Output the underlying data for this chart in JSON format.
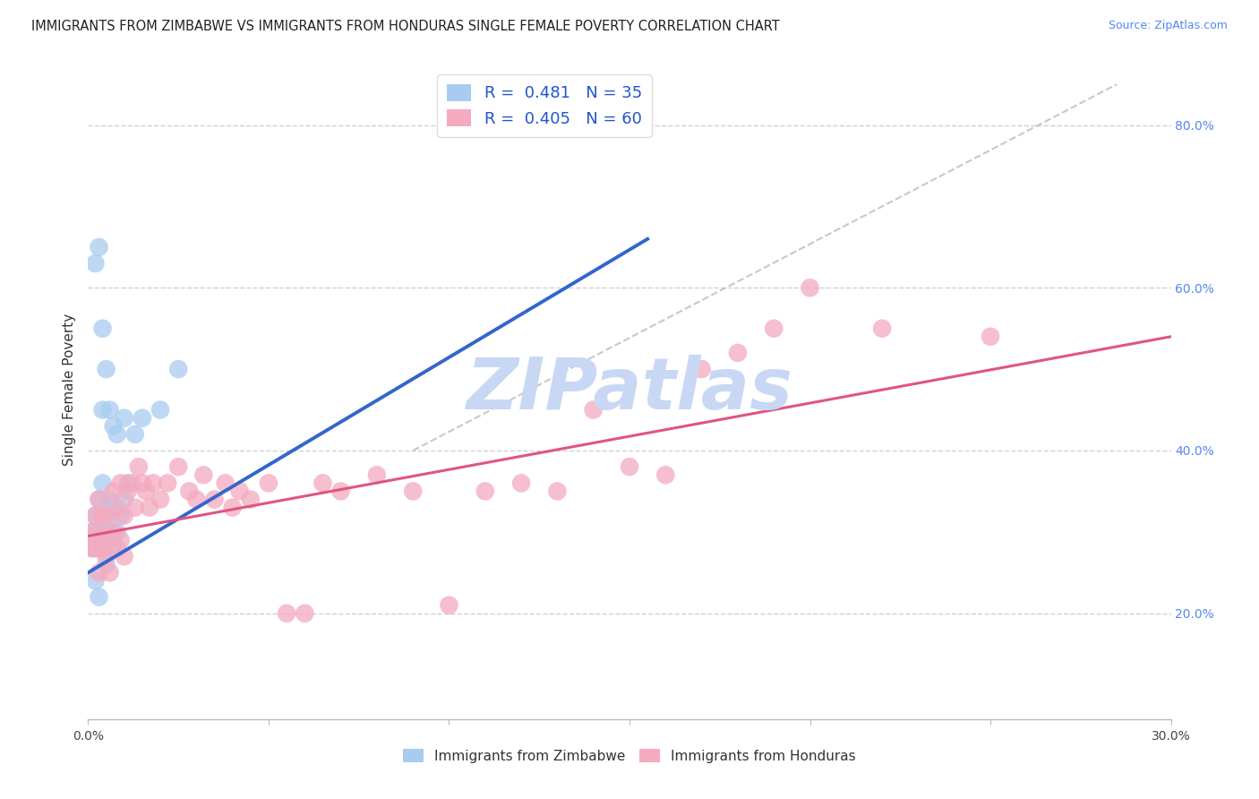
{
  "title": "IMMIGRANTS FROM ZIMBABWE VS IMMIGRANTS FROM HONDURAS SINGLE FEMALE POVERTY CORRELATION CHART",
  "source": "Source: ZipAtlas.com",
  "ylabel": "Single Female Poverty",
  "xlabel_zim": "Immigrants from Zimbabwe",
  "xlabel_hon": "Immigrants from Honduras",
  "R_zim": 0.481,
  "N_zim": 35,
  "R_hon": 0.405,
  "N_hon": 60,
  "xlim": [
    0.0,
    0.3
  ],
  "ylim": [
    0.07,
    0.88
  ],
  "color_zim": "#A8CCF0",
  "color_hon": "#F4AABF",
  "line_color_zim": "#3366CC",
  "line_color_hon": "#E05580",
  "bg_color": "#FFFFFF",
  "watermark": "ZIPatlas",
  "watermark_color": "#C8D8F4",
  "zim_x": [
    0.001,
    0.001,
    0.002,
    0.002,
    0.002,
    0.003,
    0.003,
    0.003,
    0.004,
    0.004,
    0.004,
    0.005,
    0.005,
    0.005,
    0.006,
    0.006,
    0.007,
    0.007,
    0.008,
    0.009,
    0.01,
    0.011,
    0.013,
    0.002,
    0.003,
    0.004,
    0.004,
    0.005,
    0.006,
    0.007,
    0.008,
    0.01,
    0.015,
    0.02,
    0.025
  ],
  "zim_y": [
    0.28,
    0.3,
    0.32,
    0.28,
    0.24,
    0.3,
    0.34,
    0.22,
    0.32,
    0.28,
    0.36,
    0.3,
    0.26,
    0.32,
    0.3,
    0.34,
    0.33,
    0.28,
    0.3,
    0.32,
    0.34,
    0.36,
    0.42,
    0.63,
    0.65,
    0.45,
    0.55,
    0.5,
    0.45,
    0.43,
    0.42,
    0.44,
    0.44,
    0.45,
    0.5
  ],
  "hon_x": [
    0.001,
    0.001,
    0.002,
    0.002,
    0.003,
    0.003,
    0.003,
    0.004,
    0.004,
    0.005,
    0.005,
    0.006,
    0.006,
    0.007,
    0.007,
    0.008,
    0.008,
    0.009,
    0.009,
    0.01,
    0.01,
    0.011,
    0.012,
    0.013,
    0.014,
    0.015,
    0.016,
    0.017,
    0.018,
    0.02,
    0.022,
    0.025,
    0.028,
    0.03,
    0.032,
    0.035,
    0.038,
    0.04,
    0.042,
    0.045,
    0.05,
    0.055,
    0.06,
    0.065,
    0.07,
    0.08,
    0.09,
    0.1,
    0.11,
    0.12,
    0.13,
    0.14,
    0.15,
    0.16,
    0.17,
    0.18,
    0.19,
    0.2,
    0.22,
    0.25
  ],
  "hon_y": [
    0.28,
    0.3,
    0.28,
    0.32,
    0.25,
    0.3,
    0.34,
    0.28,
    0.32,
    0.29,
    0.27,
    0.32,
    0.25,
    0.3,
    0.35,
    0.28,
    0.33,
    0.36,
    0.29,
    0.27,
    0.32,
    0.35,
    0.36,
    0.33,
    0.38,
    0.36,
    0.35,
    0.33,
    0.36,
    0.34,
    0.36,
    0.38,
    0.35,
    0.34,
    0.37,
    0.34,
    0.36,
    0.33,
    0.35,
    0.34,
    0.36,
    0.2,
    0.2,
    0.36,
    0.35,
    0.37,
    0.35,
    0.21,
    0.35,
    0.36,
    0.35,
    0.45,
    0.38,
    0.37,
    0.5,
    0.52,
    0.55,
    0.6,
    0.55,
    0.54
  ],
  "trend_zim_x0": 0.0,
  "trend_zim_y0": 0.25,
  "trend_zim_x1": 0.155,
  "trend_zim_y1": 0.66,
  "trend_hon_x0": 0.0,
  "trend_hon_y0": 0.295,
  "trend_hon_x1": 0.3,
  "trend_hon_y1": 0.54
}
